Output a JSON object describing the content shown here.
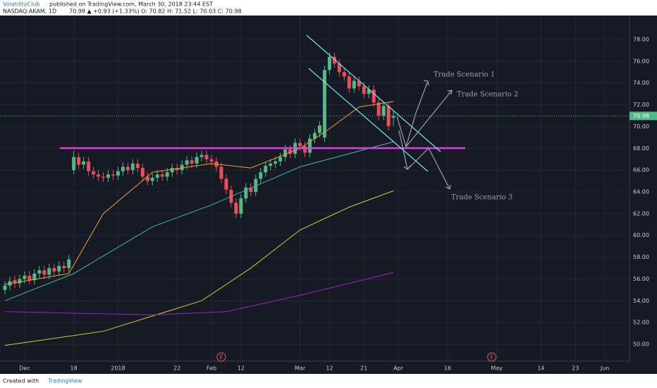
{
  "header": {
    "publisher": "VolatilityClub",
    "published": "published on TradingView.com, March 30, 2018 23:44 EST",
    "symbol": "NASDAQ:AKAM, 1D",
    "quote": "70.98 ▲ +0.93 (+1.33%) O: 70.82 H: 71.52 L: 70.03 C: 70.98"
  },
  "footer": {
    "created": "Created with",
    "brand": "TradingView"
  },
  "chart_data": {
    "type": "candlestick",
    "colors": {
      "up": "#53b987",
      "down": "#eb4d5c"
    },
    "open": [
      55.0,
      55.4,
      55.9,
      55.6,
      56.0,
      56.3,
      55.9,
      56.5,
      56.8,
      56.4,
      57.0,
      56.7,
      57.2,
      57.0,
      66.0,
      67.2,
      66.5,
      66.8,
      65.9,
      65.6,
      65.4,
      65.3,
      65.6,
      65.5,
      65.9,
      66.3,
      66.0,
      66.6,
      66.2,
      65.4,
      65.0,
      65.3,
      65.6,
      65.4,
      65.8,
      66.2,
      66.0,
      66.5,
      66.9,
      66.6,
      67.2,
      67.4,
      67.0,
      66.8,
      66.3,
      65.2,
      64.2,
      63.0,
      62.0,
      63.4,
      64.4,
      64.0,
      65.2,
      65.8,
      66.4,
      66.6,
      66.8,
      67.2,
      67.9,
      67.5,
      68.5,
      68.2,
      67.6,
      68.9,
      69.4,
      69.0,
      75.2,
      76.4,
      75.8,
      75.0,
      74.6,
      73.5,
      74.2,
      73.7,
      73.0,
      73.4,
      72.2,
      71.0,
      71.9,
      70.82
    ],
    "high": [
      55.8,
      56.2,
      56.3,
      56.4,
      56.7,
      56.7,
      56.9,
      57.2,
      57.2,
      57.4,
      57.4,
      57.6,
      57.6,
      58.2,
      67.8,
      67.6,
      67.2,
      67.2,
      66.3,
      66.0,
      65.8,
      66.0,
      66.0,
      66.3,
      66.7,
      66.7,
      67.0,
      67.0,
      66.6,
      65.8,
      65.7,
      66.0,
      66.0,
      66.2,
      66.6,
      66.6,
      66.9,
      67.3,
      67.3,
      67.6,
      67.8,
      67.8,
      67.4,
      67.2,
      66.7,
      65.6,
      64.6,
      63.4,
      63.8,
      64.8,
      64.8,
      65.6,
      66.2,
      66.8,
      67.0,
      67.2,
      67.6,
      68.3,
      68.3,
      68.9,
      68.9,
      68.6,
      69.3,
      69.8,
      70.5,
      75.6,
      76.8,
      76.8,
      76.2,
      75.4,
      75.0,
      74.6,
      74.6,
      74.1,
      73.8,
      73.8,
      72.6,
      72.3,
      72.3,
      71.52
    ],
    "low": [
      54.6,
      55.0,
      55.2,
      55.2,
      55.6,
      55.5,
      55.5,
      56.1,
      56.0,
      56.0,
      56.3,
      56.3,
      56.6,
      56.6,
      65.6,
      66.1,
      66.1,
      65.5,
      65.2,
      65.0,
      64.9,
      64.9,
      65.1,
      65.1,
      65.5,
      65.6,
      65.6,
      65.8,
      65.0,
      64.6,
      64.6,
      64.9,
      65.0,
      65.0,
      65.4,
      65.6,
      65.6,
      66.1,
      66.2,
      66.2,
      66.8,
      66.6,
      66.4,
      65.9,
      64.8,
      63.8,
      62.6,
      61.6,
      61.6,
      63.0,
      63.6,
      63.6,
      64.8,
      65.4,
      66.0,
      66.2,
      66.4,
      66.8,
      67.1,
      67.1,
      67.8,
      67.2,
      67.2,
      68.5,
      69.0,
      68.6,
      74.8,
      75.4,
      74.6,
      74.2,
      73.1,
      73.1,
      73.3,
      72.6,
      72.6,
      71.8,
      70.6,
      70.6,
      69.65,
      70.03
    ],
    "close": [
      55.4,
      55.8,
      55.6,
      56.0,
      56.3,
      55.9,
      56.5,
      56.8,
      56.4,
      57.0,
      56.7,
      57.2,
      57.0,
      57.8,
      67.2,
      66.5,
      66.8,
      65.9,
      65.6,
      65.4,
      65.3,
      65.6,
      65.5,
      65.9,
      66.3,
      66.0,
      66.6,
      66.2,
      65.4,
      65.0,
      65.3,
      65.6,
      65.4,
      65.8,
      66.2,
      66.0,
      66.5,
      66.9,
      66.6,
      67.2,
      67.4,
      67.0,
      66.8,
      66.3,
      65.2,
      64.2,
      63.0,
      62.0,
      63.4,
      64.4,
      64.0,
      65.2,
      65.8,
      66.4,
      66.6,
      66.8,
      67.2,
      67.9,
      67.5,
      68.5,
      68.2,
      67.6,
      68.9,
      69.4,
      70.1,
      75.2,
      76.4,
      75.8,
      75.0,
      74.6,
      73.5,
      74.2,
      73.7,
      73.0,
      73.4,
      72.2,
      71.0,
      71.9,
      70.05,
      70.98
    ],
    "lines": [
      {
        "color": "#f0a030",
        "x": [
          0,
          13,
          20,
          30,
          42,
          50,
          60,
          66,
          72,
          79
        ],
        "values": [
          55.5,
          56.5,
          62.0,
          65.8,
          66.6,
          66.2,
          68.0,
          69.8,
          71.8,
          72.3
        ]
      },
      {
        "color": "#3fb8b0",
        "x": [
          0,
          14,
          30,
          42,
          60,
          79
        ],
        "values": [
          54.0,
          56.5,
          60.8,
          62.8,
          66.3,
          68.6
        ]
      },
      {
        "color": "#d8c83a",
        "x": [
          0,
          20,
          40,
          50,
          60,
          70,
          79
        ],
        "values": [
          49.9,
          51.2,
          54.0,
          57.0,
          60.5,
          62.6,
          64.1
        ]
      },
      {
        "color": "#a020c0",
        "x": [
          0,
          30,
          45,
          60,
          70,
          79
        ],
        "values": [
          53.0,
          52.7,
          53.0,
          54.5,
          55.6,
          56.6
        ]
      }
    ],
    "last_price": 70.98,
    "last_price_label": "70.98",
    "events": [
      {
        "x": 44,
        "label": "E"
      },
      {
        "x": 99,
        "label": "E"
      }
    ],
    "annotations": [
      "Trade Scenario 1",
      "Trade Scenario 2",
      "Trade Scenario 3"
    ],
    "xlim": [
      -1,
      127
    ],
    "xticks": [
      {
        "value": 4,
        "label": "Dec"
      },
      {
        "value": 14,
        "label": "18"
      },
      {
        "value": 23,
        "label": "2018"
      },
      {
        "value": 35,
        "label": "22"
      },
      {
        "value": 42,
        "label": "Feb"
      },
      {
        "value": 48,
        "label": "12"
      },
      {
        "value": 60,
        "label": "Mar"
      },
      {
        "value": 66,
        "label": "12"
      },
      {
        "value": 73,
        "label": "21"
      },
      {
        "value": 80,
        "label": "Apr"
      },
      {
        "value": 90,
        "label": "16"
      },
      {
        "value": 100,
        "label": "May"
      },
      {
        "value": 109,
        "label": "14"
      },
      {
        "value": 116,
        "label": "23"
      },
      {
        "value": 122,
        "label": "Jun"
      }
    ],
    "ylim": [
      48.45,
      80.2
    ],
    "yticks": [
      {
        "value": 50,
        "label": "50.00"
      },
      {
        "value": 52,
        "label": "52.00"
      },
      {
        "value": 54,
        "label": "54.00"
      },
      {
        "value": 56,
        "label": "56.00"
      },
      {
        "value": 58,
        "label": "58.00"
      },
      {
        "value": 60,
        "label": "60.00"
      },
      {
        "value": 62,
        "label": "62.00"
      },
      {
        "value": 64,
        "label": "64.00"
      },
      {
        "value": 66,
        "label": "66.00"
      },
      {
        "value": 68,
        "label": "68.00"
      },
      {
        "value": 70,
        "label": "70.00"
      },
      {
        "value": 72,
        "label": "72.00"
      },
      {
        "value": 74,
        "label": "74.00"
      },
      {
        "value": 76,
        "label": "76.00"
      },
      {
        "value": 78,
        "label": "78.00"
      }
    ],
    "grid": true
  }
}
